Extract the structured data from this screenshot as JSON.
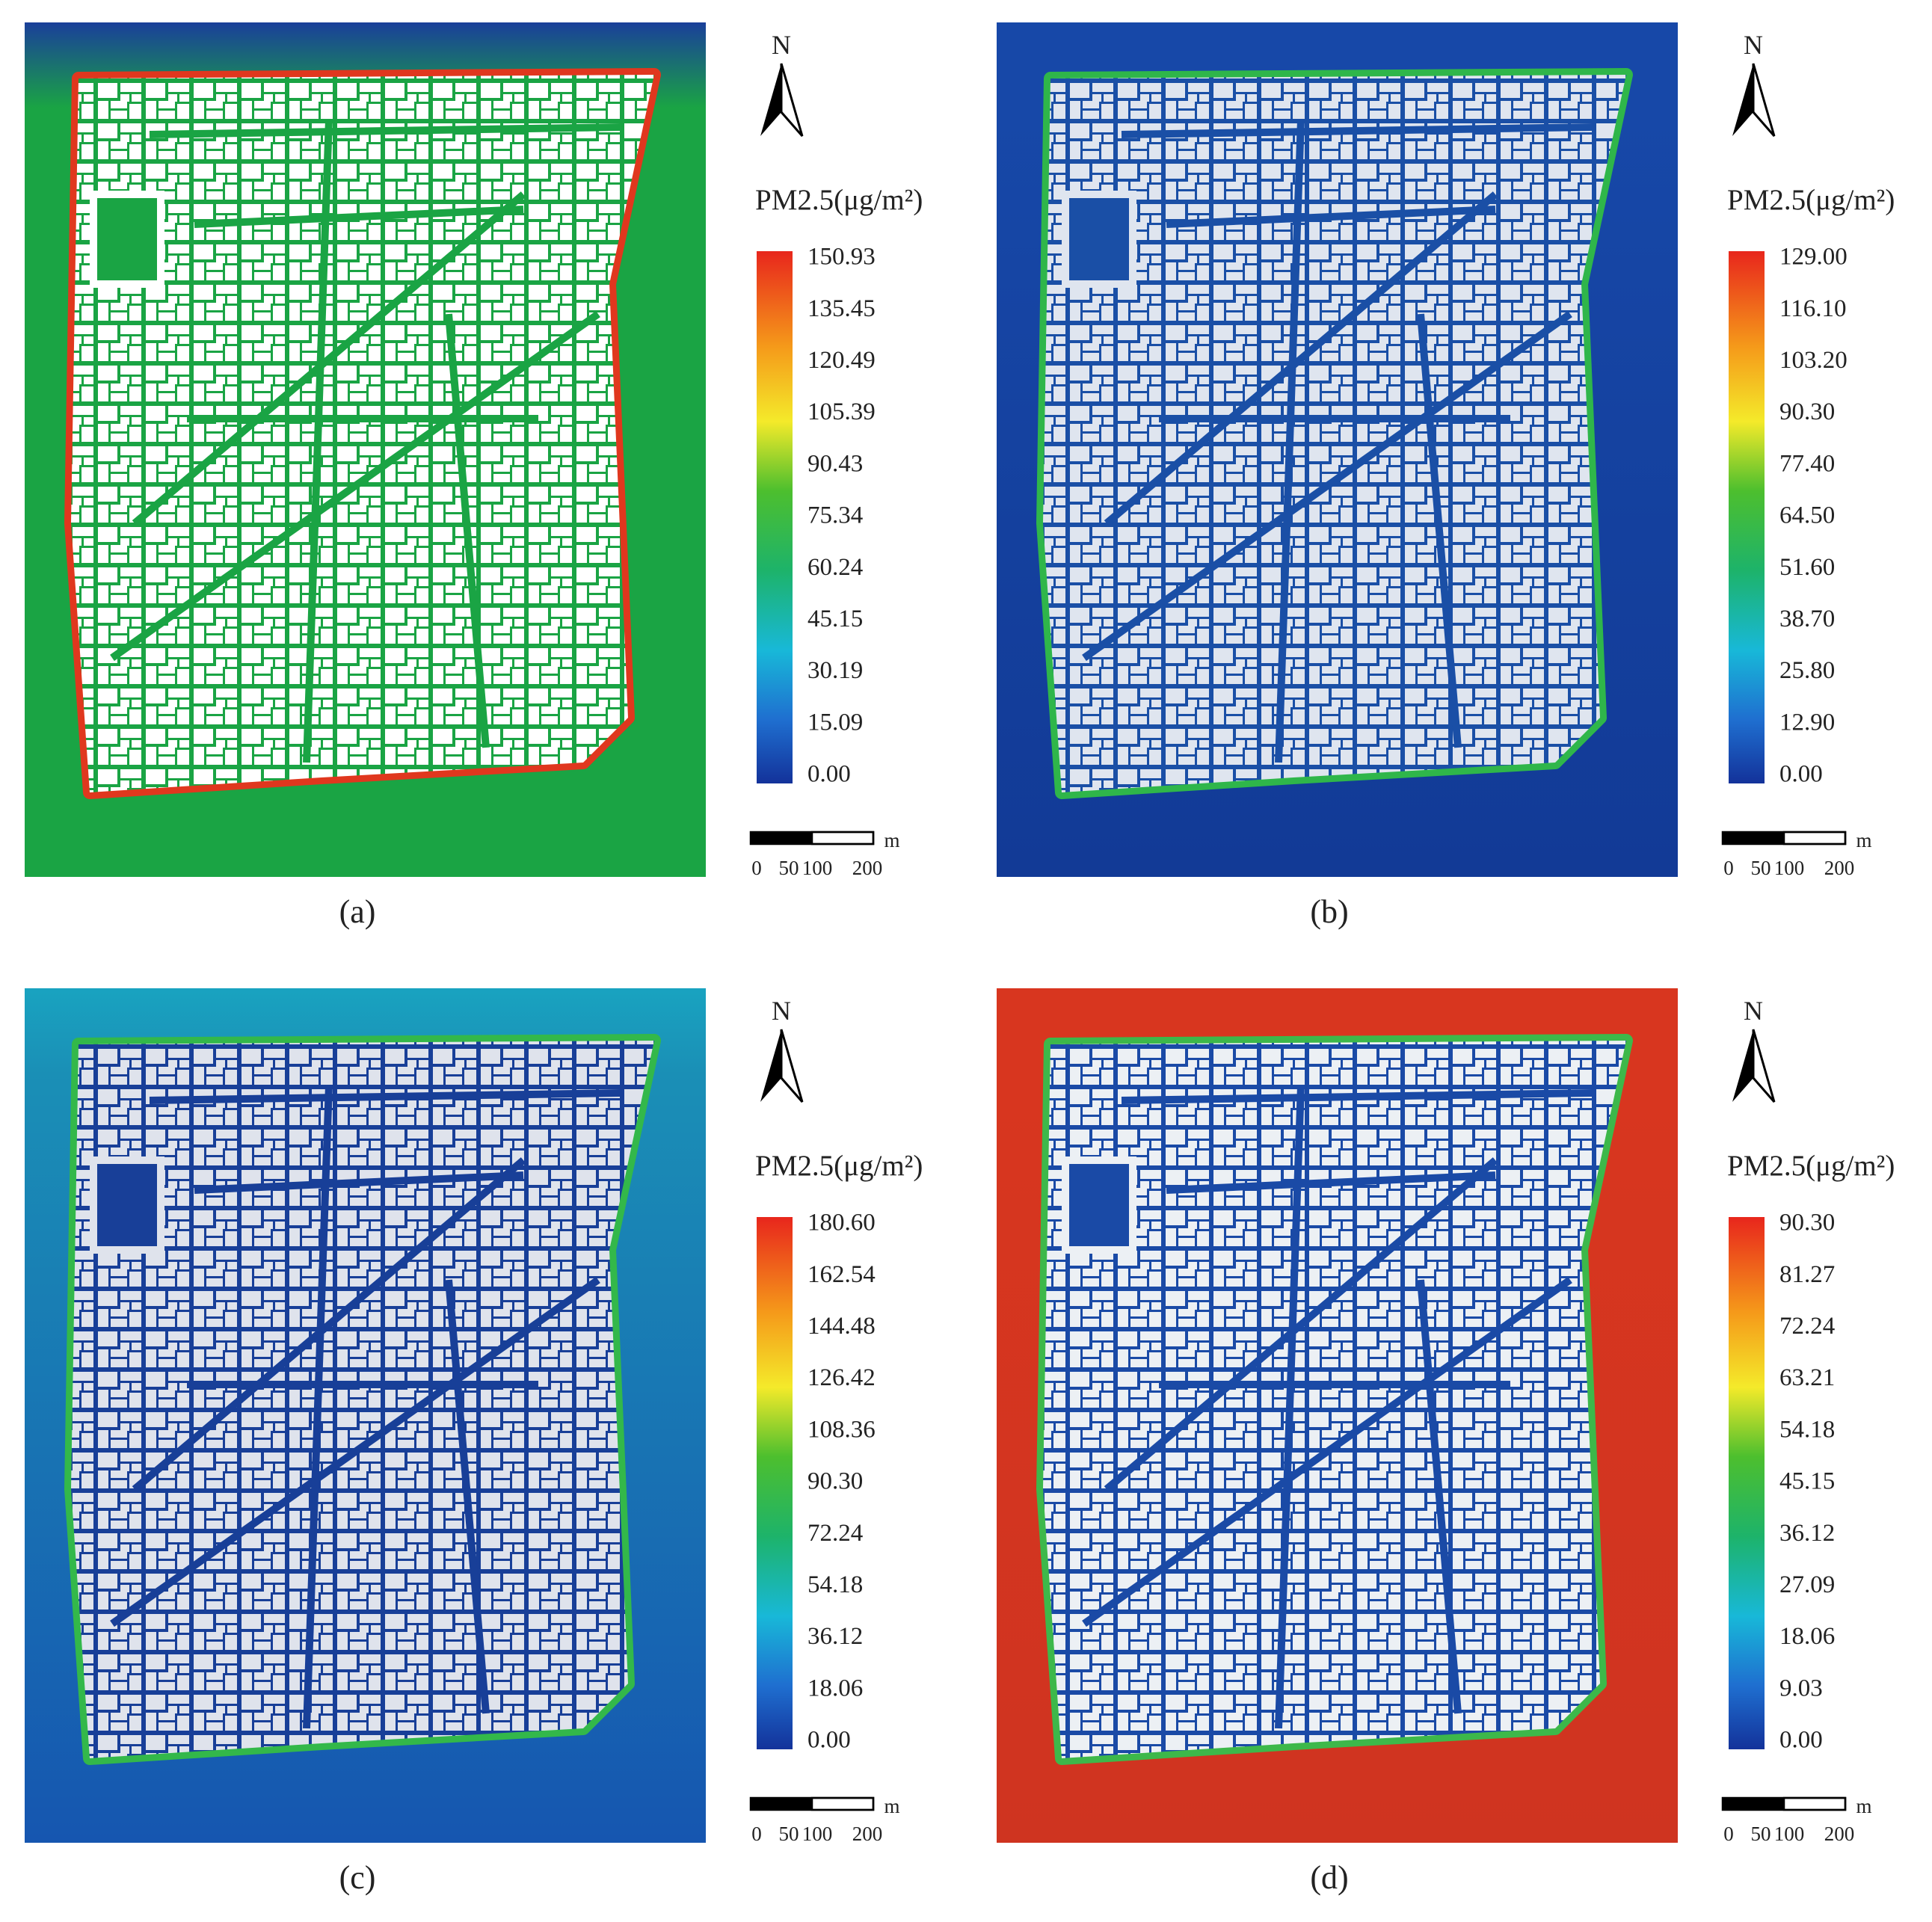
{
  "panels": [
    {
      "label": "(a)",
      "north": "N",
      "legend": {
        "title": "PM2.5(μg/m²)",
        "ticks": [
          "150.93",
          "135.45",
          "120.49",
          "105.39",
          "90.43",
          "75.34",
          "60.24",
          "45.15",
          "30.19",
          "15.09",
          "0.00"
        ]
      },
      "scale_bar": {
        "unit": "m",
        "labels": [
          "0",
          "50",
          "100",
          "200"
        ]
      }
    },
    {
      "label": "(b)",
      "north": "N",
      "legend": {
        "title": "PM2.5(μg/m²)",
        "ticks": [
          "129.00",
          "116.10",
          "103.20",
          "90.30",
          "77.40",
          "64.50",
          "51.60",
          "38.70",
          "25.80",
          "12.90",
          "0.00"
        ]
      },
      "scale_bar": {
        "unit": "m",
        "labels": [
          "0",
          "50",
          "100",
          "200"
        ]
      }
    },
    {
      "label": "(c)",
      "north": "N",
      "legend": {
        "title": "PM2.5(μg/m²)",
        "ticks": [
          "180.60",
          "162.54",
          "144.48",
          "126.42",
          "108.36",
          "90.30",
          "72.24",
          "54.18",
          "36.12",
          "18.06",
          "0.00"
        ]
      },
      "scale_bar": {
        "unit": "m",
        "labels": [
          "0",
          "50",
          "100",
          "200"
        ]
      }
    },
    {
      "label": "(d)",
      "north": "N",
      "legend": {
        "title": "PM2.5(μg/m²)",
        "ticks": [
          "90.30",
          "81.27",
          "72.24",
          "63.21",
          "54.18",
          "45.15",
          "36.12",
          "27.09",
          "18.06",
          "9.03",
          "0.00"
        ]
      },
      "scale_bar": {
        "unit": "m",
        "labels": [
          "0",
          "50",
          "100",
          "200"
        ]
      }
    }
  ]
}
